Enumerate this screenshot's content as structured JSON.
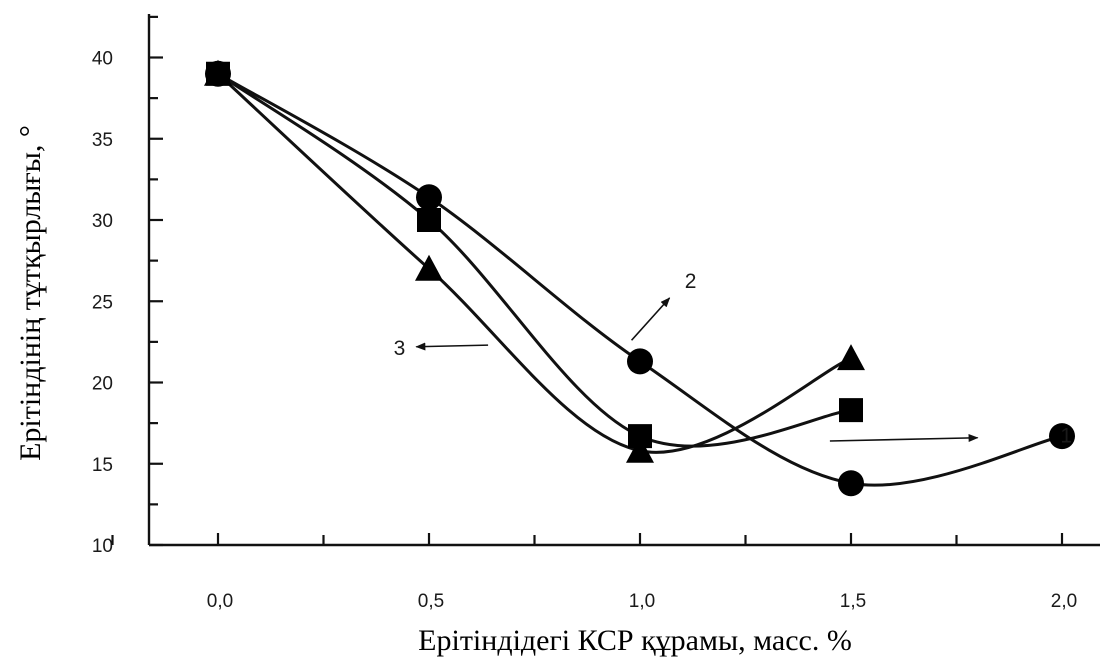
{
  "chart_data": {
    "type": "line",
    "title": "",
    "xlabel": "Ерітіндідегі КСР құрамы, масс. %",
    "ylabel": "Ерітіндінің тұтқырлығы, °",
    "xlim": [
      -0.25,
      2.2
    ],
    "ylim": [
      10,
      42
    ],
    "x_major_ticks": [
      0.0,
      0.5,
      1.0,
      1.5,
      2.0
    ],
    "x_tick_labels": [
      "0,0",
      "0,5",
      "1,0",
      "1,5",
      "2,0"
    ],
    "y_major_ticks": [
      10,
      15,
      20,
      25,
      30,
      35,
      40
    ],
    "y_tick_labels": [
      "10",
      "15",
      "20",
      "25",
      "30",
      "35",
      "40"
    ],
    "grid": false,
    "legend": "none",
    "series": [
      {
        "name": "1",
        "marker": "square",
        "x": [
          0.0,
          0.5,
          1.0,
          1.5
        ],
        "y": [
          39.0,
          30.0,
          16.7,
          18.3
        ]
      },
      {
        "name": "2",
        "marker": "circle",
        "x": [
          0.0,
          0.5,
          1.0,
          1.5,
          2.0
        ],
        "y": [
          39.0,
          31.4,
          21.3,
          13.8,
          16.7
        ]
      },
      {
        "name": "3",
        "marker": "triangle",
        "x": [
          0.0,
          0.5,
          1.0,
          1.5
        ],
        "y": [
          39.0,
          27.0,
          15.8,
          21.5
        ]
      }
    ],
    "annotations": [
      {
        "text": "1",
        "x": 2.01,
        "y": 16.8,
        "arrow_from": [
          1.45,
          16.4
        ],
        "arrow_to": [
          1.8,
          16.6
        ]
      },
      {
        "text": "2",
        "x": 1.12,
        "y": 26.3,
        "arrow_from": [
          0.98,
          22.6
        ],
        "arrow_to": [
          1.07,
          25.2
        ]
      },
      {
        "text": "3",
        "x": 0.43,
        "y": 22.2,
        "arrow_from": [
          0.64,
          22.3
        ],
        "arrow_to": [
          0.47,
          22.2
        ]
      }
    ]
  }
}
